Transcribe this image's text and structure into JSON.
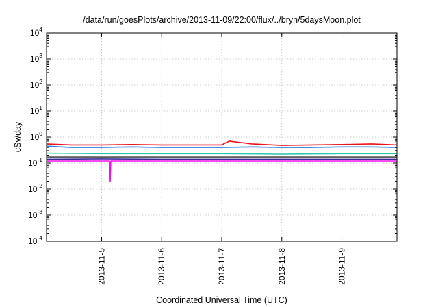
{
  "chart_data": {
    "type": "line",
    "title": "/data/run/goesPlots/archive/2013-11-09/22:00/flux/../bryn/5daysMoon.plot",
    "xlabel": "Coordinated Universal Time (UTC)",
    "ylabel": "cSv/day",
    "y_scale": "log",
    "ylim": [
      0.0001,
      10000
    ],
    "y_ticks": [
      {
        "base": "10",
        "exp": "4",
        "value": 10000
      },
      {
        "base": "10",
        "exp": "3",
        "value": 1000
      },
      {
        "base": "10",
        "exp": "2",
        "value": 100
      },
      {
        "base": "10",
        "exp": "1",
        "value": 10
      },
      {
        "base": "10",
        "exp": "0",
        "value": 1
      },
      {
        "base": "10",
        "exp": "-1",
        "value": 0.1
      },
      {
        "base": "10",
        "exp": "-2",
        "value": 0.01
      },
      {
        "base": "10",
        "exp": "-3",
        "value": 0.001
      },
      {
        "base": "10",
        "exp": "-4",
        "value": 0.0001
      }
    ],
    "xlim": [
      "2013-11-04T02:00",
      "2013-11-09T22:00"
    ],
    "x_ticks": [
      "2013-11-5",
      "2013-11-6",
      "2013-11-7",
      "2013-11-8",
      "2013-11-9"
    ],
    "x_tick_dates": [
      "2013-11-05T00:00",
      "2013-11-06T00:00",
      "2013-11-07T00:00",
      "2013-11-08T00:00",
      "2013-11-09T00:00"
    ],
    "grid": true,
    "series": [
      {
        "color": "#e8141c",
        "x": [
          "2013-11-04T02:00",
          "2013-11-04T12:00",
          "2013-11-05T00:00",
          "2013-11-05T12:00",
          "2013-11-06T00:00",
          "2013-11-06T12:00",
          "2013-11-07T00:00",
          "2013-11-07T03:00",
          "2013-11-07T12:00",
          "2013-11-08T00:00",
          "2013-11-08T12:00",
          "2013-11-09T00:00",
          "2013-11-09T12:00",
          "2013-11-09T22:00"
        ],
        "values": [
          0.55,
          0.5,
          0.5,
          0.52,
          0.5,
          0.5,
          0.5,
          0.7,
          0.55,
          0.48,
          0.5,
          0.52,
          0.55,
          0.5
        ]
      },
      {
        "color": "#2a7fe8",
        "x": [
          "2013-11-04T02:00",
          "2013-11-04T12:00",
          "2013-11-05T00:00",
          "2013-11-05T12:00",
          "2013-11-06T00:00",
          "2013-11-06T12:00",
          "2013-11-07T00:00",
          "2013-11-07T12:00",
          "2013-11-08T00:00",
          "2013-11-08T12:00",
          "2013-11-09T00:00",
          "2013-11-09T12:00",
          "2013-11-09T22:00"
        ],
        "values": [
          0.45,
          0.4,
          0.4,
          0.42,
          0.4,
          0.4,
          0.4,
          0.42,
          0.4,
          0.4,
          0.42,
          0.42,
          0.4
        ]
      },
      {
        "color": "#2ac6a6",
        "x": [
          "2013-11-04T02:00",
          "2013-11-05T00:00",
          "2013-11-06T00:00",
          "2013-11-07T00:00",
          "2013-11-08T00:00",
          "2013-11-09T00:00",
          "2013-11-09T22:00"
        ],
        "values": [
          0.24,
          0.23,
          0.23,
          0.23,
          0.22,
          0.23,
          0.23
        ]
      },
      {
        "color": "#7a7a7a",
        "x": [
          "2013-11-04T02:00",
          "2013-11-05T00:00",
          "2013-11-06T00:00",
          "2013-11-07T00:00",
          "2013-11-08T00:00",
          "2013-11-09T00:00",
          "2013-11-09T22:00"
        ],
        "values": [
          0.18,
          0.18,
          0.18,
          0.18,
          0.18,
          0.18,
          0.18
        ]
      },
      {
        "color": "#151515",
        "x": [
          "2013-11-04T02:00",
          "2013-11-05T00:00",
          "2013-11-06T00:00",
          "2013-11-07T00:00",
          "2013-11-08T00:00",
          "2013-11-09T00:00",
          "2013-11-09T22:00"
        ],
        "values": [
          0.16,
          0.16,
          0.16,
          0.16,
          0.16,
          0.16,
          0.16
        ]
      },
      {
        "color": "#3a2a9a",
        "x": [
          "2013-11-04T02:00",
          "2013-11-05T00:00",
          "2013-11-06T00:00",
          "2013-11-07T00:00",
          "2013-11-08T00:00",
          "2013-11-09T00:00",
          "2013-11-09T22:00"
        ],
        "values": [
          0.14,
          0.145,
          0.14,
          0.14,
          0.14,
          0.14,
          0.14
        ]
      },
      {
        "color": "#f010e8",
        "x": [
          "2013-11-04T02:00",
          "2013-11-04T12:00",
          "2013-11-05T00:00",
          "2013-11-05T03:10",
          "2013-11-05T03:25",
          "2013-11-05T03:40",
          "2013-11-05T12:00",
          "2013-11-06T00:00",
          "2013-11-07T00:00",
          "2013-11-08T00:00",
          "2013-11-09T00:00",
          "2013-11-09T22:00"
        ],
        "values": [
          0.12,
          0.12,
          0.12,
          0.12,
          0.019,
          0.12,
          0.12,
          0.12,
          0.12,
          0.12,
          0.12,
          0.12
        ]
      }
    ]
  }
}
